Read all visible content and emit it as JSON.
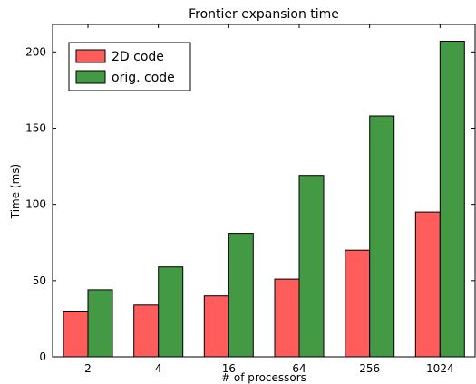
{
  "chart_data": {
    "type": "bar",
    "title": "Frontier expansion time",
    "xlabel": "# of processors",
    "ylabel": "Time (ms)",
    "categories": [
      "2",
      "4",
      "16",
      "64",
      "256",
      "1024"
    ],
    "series": [
      {
        "name": "2D code",
        "color": "#ff5c5c",
        "values": [
          30,
          34,
          40,
          51,
          70,
          95
        ]
      },
      {
        "name": "orig. code",
        "color": "#449944",
        "values": [
          44,
          59,
          81,
          119,
          158,
          207
        ]
      }
    ],
    "ylim": [
      0,
      218
    ],
    "yticks": [
      0,
      50,
      100,
      150,
      200
    ],
    "grid": false,
    "legend_position": "top-left"
  }
}
